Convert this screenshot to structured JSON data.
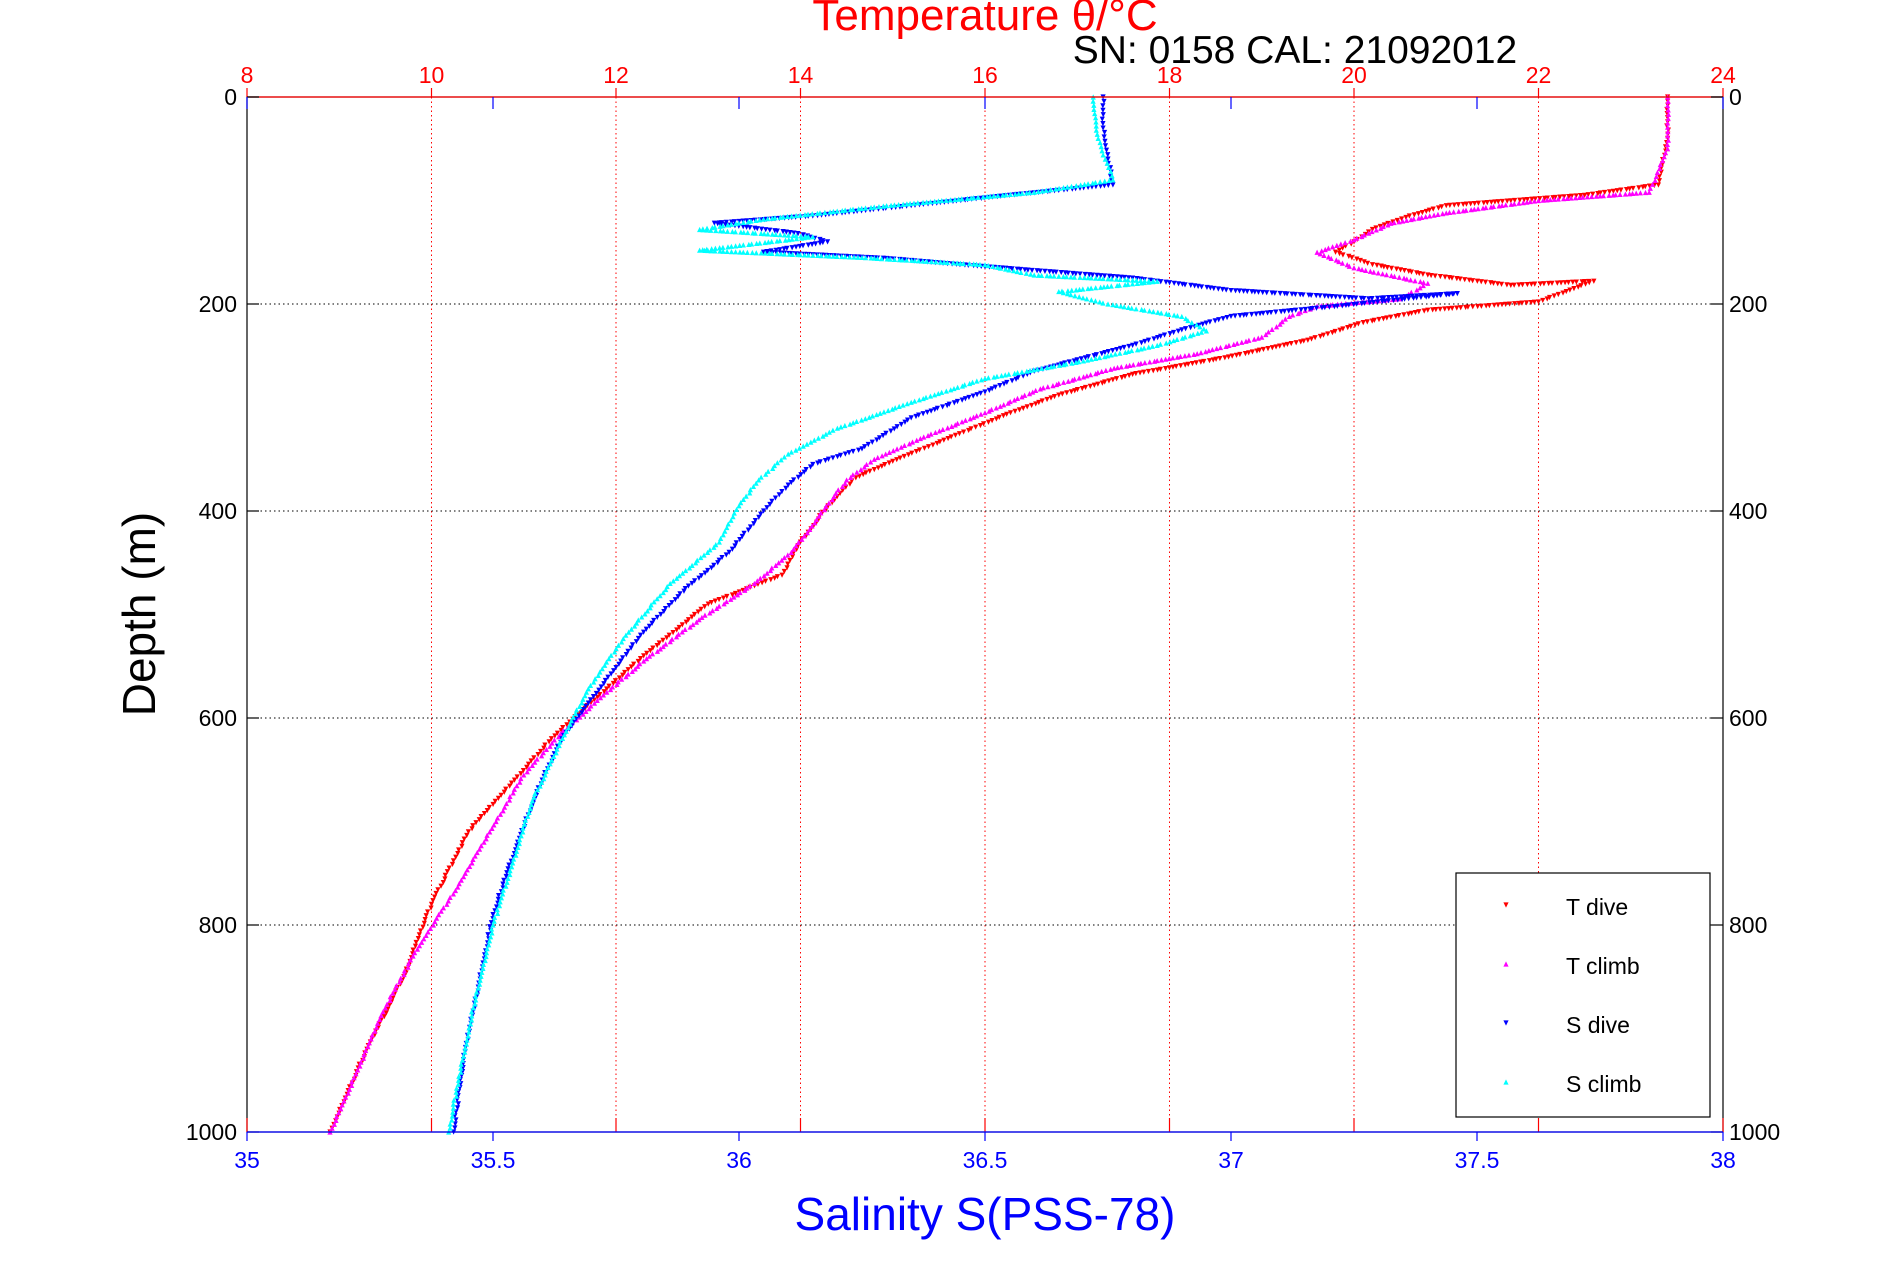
{
  "chart_data": {
    "type": "scatter",
    "title": "Temperature θ/°C",
    "subtitle": "SN: 0158  CAL: 21092012",
    "ylabel": "Depth (m)",
    "xlabel_bottom": "Salinity S(PSS-78)",
    "xlabel_top": "Temperature θ/°C",
    "ylim": [
      0,
      1000
    ],
    "y_reversed": true,
    "y_ticks": [
      "0",
      "200",
      "400",
      "600",
      "800",
      "1000"
    ],
    "salinity_lim": [
      35,
      38
    ],
    "salinity_ticks": [
      "35",
      "35.5",
      "36",
      "36.5",
      "37",
      "37.5",
      "38"
    ],
    "temperature_lim": [
      8,
      24
    ],
    "temperature_ticks": [
      "8",
      "10",
      "12",
      "14",
      "16",
      "18",
      "20",
      "22",
      "24"
    ],
    "grid": true,
    "legend_position": "bottom-right",
    "colors": {
      "temperature_axis": "#ff0000",
      "salinity_axis": "#0000ff",
      "t_dive": "#ff0000",
      "t_climb": "#ff00ff",
      "s_dive": "#0000ff",
      "s_climb": "#00ffff"
    },
    "series": [
      {
        "name": "T dive",
        "axis": "temperature",
        "marker": "triangle-down",
        "points": [
          [
            23.4,
            0
          ],
          [
            23.4,
            40
          ],
          [
            23.3,
            85
          ],
          [
            22.5,
            95
          ],
          [
            21.0,
            105
          ],
          [
            20.6,
            115
          ],
          [
            20.2,
            128
          ],
          [
            20.0,
            140
          ],
          [
            19.8,
            150
          ],
          [
            20.2,
            162
          ],
          [
            20.8,
            172
          ],
          [
            21.7,
            182
          ],
          [
            22.6,
            178
          ],
          [
            22.0,
            198
          ],
          [
            20.8,
            206
          ],
          [
            20.1,
            218
          ],
          [
            19.5,
            235
          ],
          [
            18.6,
            252
          ],
          [
            17.6,
            268
          ],
          [
            16.8,
            288
          ],
          [
            16.2,
            308
          ],
          [
            15.6,
            330
          ],
          [
            15.0,
            352
          ],
          [
            14.6,
            368
          ],
          [
            14.3,
            395
          ],
          [
            14.0,
            430
          ],
          [
            13.8,
            462
          ],
          [
            13.0,
            490
          ],
          [
            12.3,
            540
          ],
          [
            11.8,
            580
          ],
          [
            11.3,
            620
          ],
          [
            10.9,
            660
          ],
          [
            10.4,
            710
          ],
          [
            10.0,
            780
          ],
          [
            9.7,
            850
          ],
          [
            9.3,
            920
          ],
          [
            8.9,
            1000
          ]
        ]
      },
      {
        "name": "T climb",
        "axis": "temperature",
        "marker": "triangle-up",
        "points": [
          [
            23.4,
            0
          ],
          [
            23.4,
            50
          ],
          [
            23.2,
            92
          ],
          [
            22.0,
            100
          ],
          [
            21.0,
            112
          ],
          [
            20.4,
            122
          ],
          [
            20.0,
            138
          ],
          [
            19.6,
            150
          ],
          [
            20.0,
            165
          ],
          [
            20.8,
            180
          ],
          [
            20.5,
            195
          ],
          [
            19.6,
            202
          ],
          [
            19.3,
            212
          ],
          [
            19.0,
            232
          ],
          [
            18.3,
            248
          ],
          [
            17.4,
            262
          ],
          [
            16.6,
            282
          ],
          [
            16.0,
            305
          ],
          [
            15.3,
            330
          ],
          [
            14.8,
            350
          ],
          [
            14.5,
            370
          ],
          [
            14.2,
            405
          ],
          [
            13.9,
            440
          ],
          [
            13.5,
            470
          ],
          [
            12.9,
            505
          ],
          [
            12.3,
            545
          ],
          [
            11.9,
            575
          ],
          [
            11.4,
            615
          ],
          [
            11.0,
            655
          ],
          [
            10.7,
            700
          ],
          [
            10.3,
            760
          ],
          [
            9.8,
            830
          ],
          [
            9.5,
            880
          ],
          [
            9.2,
            940
          ],
          [
            8.9,
            1000
          ]
        ]
      },
      {
        "name": "S dive",
        "axis": "salinity",
        "marker": "triangle-down",
        "points": [
          [
            36.74,
            0
          ],
          [
            36.74,
            30
          ],
          [
            36.75,
            60
          ],
          [
            36.76,
            85
          ],
          [
            36.55,
            95
          ],
          [
            36.35,
            105
          ],
          [
            36.15,
            115
          ],
          [
            35.95,
            122
          ],
          [
            36.12,
            132
          ],
          [
            36.18,
            140
          ],
          [
            36.05,
            150
          ],
          [
            36.3,
            156
          ],
          [
            36.5,
            164
          ],
          [
            36.8,
            175
          ],
          [
            37.0,
            187
          ],
          [
            37.28,
            195
          ],
          [
            37.46,
            190
          ],
          [
            37.2,
            203
          ],
          [
            37.0,
            212
          ],
          [
            36.9,
            225
          ],
          [
            36.8,
            240
          ],
          [
            36.6,
            265
          ],
          [
            36.5,
            285
          ],
          [
            36.35,
            310
          ],
          [
            36.25,
            340
          ],
          [
            36.15,
            355
          ],
          [
            36.1,
            375
          ],
          [
            36.05,
            400
          ],
          [
            35.98,
            440
          ],
          [
            35.88,
            480
          ],
          [
            35.8,
            520
          ],
          [
            35.72,
            570
          ],
          [
            35.64,
            620
          ],
          [
            35.6,
            660
          ],
          [
            35.55,
            720
          ],
          [
            35.5,
            790
          ],
          [
            35.47,
            860
          ],
          [
            35.44,
            930
          ],
          [
            35.42,
            1000
          ]
        ]
      },
      {
        "name": "S climb",
        "axis": "salinity",
        "marker": "triangle-up",
        "points": [
          [
            36.72,
            0
          ],
          [
            36.73,
            40
          ],
          [
            36.76,
            80
          ],
          [
            36.6,
            92
          ],
          [
            36.3,
            105
          ],
          [
            36.05,
            118
          ],
          [
            35.92,
            128
          ],
          [
            36.15,
            135
          ],
          [
            35.92,
            148
          ],
          [
            36.25,
            155
          ],
          [
            36.5,
            162
          ],
          [
            36.6,
            172
          ],
          [
            36.85,
            178
          ],
          [
            36.65,
            188
          ],
          [
            36.75,
            200
          ],
          [
            36.9,
            212
          ],
          [
            36.95,
            226
          ],
          [
            36.85,
            240
          ],
          [
            36.7,
            255
          ],
          [
            36.5,
            272
          ],
          [
            36.35,
            295
          ],
          [
            36.2,
            320
          ],
          [
            36.1,
            345
          ],
          [
            36.04,
            370
          ],
          [
            36.0,
            395
          ],
          [
            35.96,
            430
          ],
          [
            35.86,
            470
          ],
          [
            35.77,
            520
          ],
          [
            35.69,
            575
          ],
          [
            35.63,
            630
          ],
          [
            35.58,
            680
          ],
          [
            35.54,
            740
          ],
          [
            35.5,
            800
          ],
          [
            35.46,
            880
          ],
          [
            35.43,
            950
          ],
          [
            35.41,
            1000
          ]
        ]
      }
    ]
  }
}
